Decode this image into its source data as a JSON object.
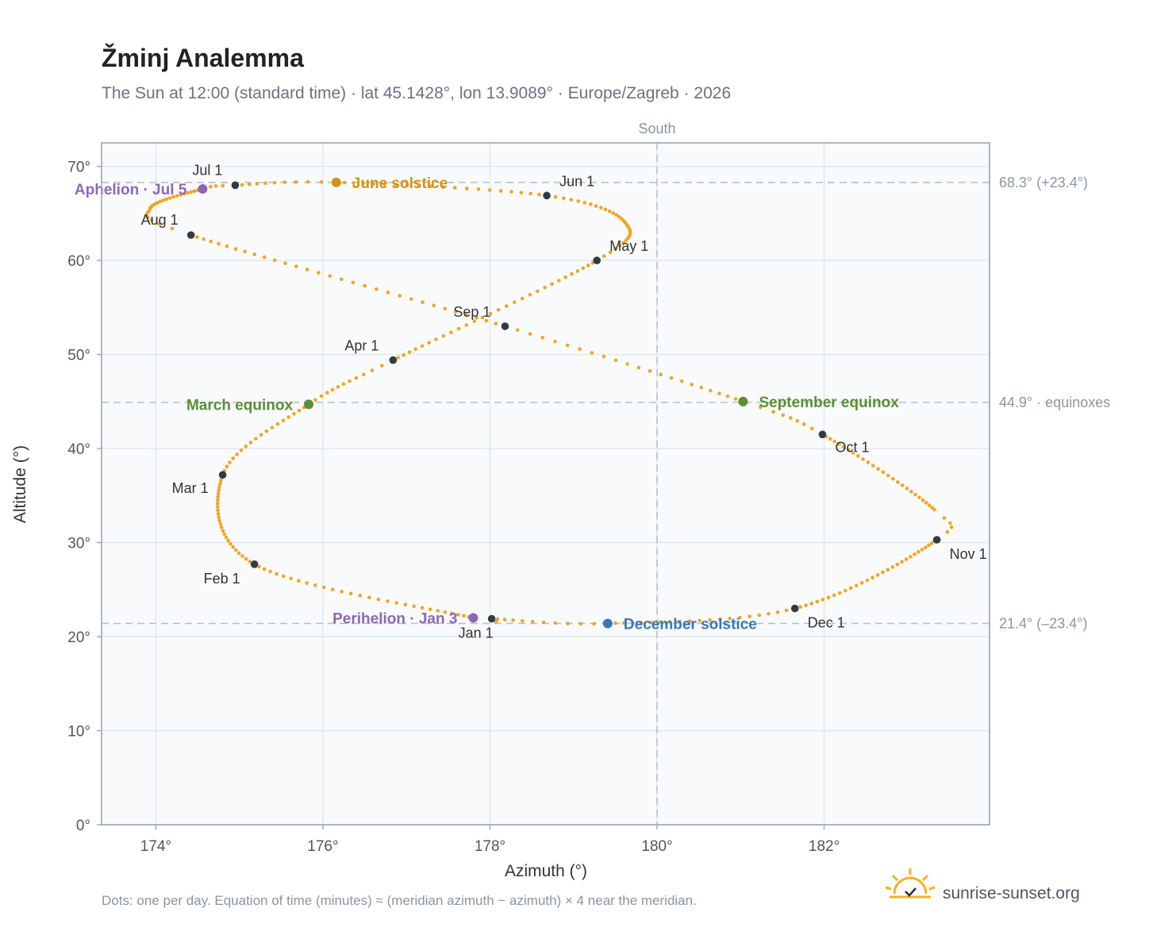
{
  "title": "Žminj Analemma",
  "subtitle": "The Sun at 12:00 (standard time) · lat 45.1428°, lon 13.9089° · Europe/Zagreb · 2026",
  "footnote": "Dots: one per day. Equation of time (minutes) ≈ (meridian azimuth − azimuth) × 4 near the meridian.",
  "brand": "sunrise-sunset.org",
  "chart_data": {
    "type": "scatter",
    "xlabel": "Azimuth (°)",
    "ylabel": "Altitude (°)",
    "xlim": [
      173.35,
      183.98
    ],
    "ylim": [
      0,
      72.5
    ],
    "x_ticks": [
      174,
      176,
      178,
      180,
      182
    ],
    "y_ticks": [
      0,
      10,
      20,
      30,
      40,
      50,
      60,
      70
    ],
    "x_tick_labels": [
      "174°",
      "176°",
      "178°",
      "180°",
      "182°"
    ],
    "y_tick_labels": [
      "0°",
      "10°",
      "20°",
      "30°",
      "40°",
      "50°",
      "60°",
      "70°"
    ],
    "south": {
      "x": 180,
      "label": "South"
    },
    "ref_lines": [
      {
        "y": 68.3,
        "label": "68.3° (+23.4°)"
      },
      {
        "y": 44.9,
        "label": "44.9° · equinoxes"
      },
      {
        "y": 21.4,
        "label": "21.4° (–23.4°)"
      }
    ],
    "months": [
      {
        "label": "Jan 1",
        "az": 178.02,
        "alt": 21.9
      },
      {
        "label": "Feb 1",
        "az": 175.18,
        "alt": 27.7
      },
      {
        "label": "Mar 1",
        "az": 174.8,
        "alt": 37.2
      },
      {
        "label": "Apr 1",
        "az": 176.84,
        "alt": 49.4
      },
      {
        "label": "May 1",
        "az": 179.28,
        "alt": 60.0
      },
      {
        "label": "Jun 1",
        "az": 178.68,
        "alt": 66.9
      },
      {
        "label": "Jul 1",
        "az": 174.95,
        "alt": 68.0
      },
      {
        "label": "Aug 1",
        "az": 174.42,
        "alt": 62.7
      },
      {
        "label": "Sep 1",
        "az": 178.18,
        "alt": 53.0
      },
      {
        "label": "Oct 1",
        "az": 181.98,
        "alt": 41.5
      },
      {
        "label": "Nov 1",
        "az": 183.35,
        "alt": 30.3
      },
      {
        "label": "Dec 1",
        "az": 181.65,
        "alt": 23.0
      }
    ],
    "events": [
      {
        "label": "March equinox",
        "az": 175.83,
        "alt": 44.7,
        "color": "#5a8f32"
      },
      {
        "label": "June solstice",
        "az": 176.16,
        "alt": 68.3,
        "color": "#d4920f"
      },
      {
        "label": "Aphelion · Jul 5",
        "az": 174.56,
        "alt": 67.6,
        "color": "#8e67b5"
      },
      {
        "label": "September equinox",
        "az": 181.03,
        "alt": 45.0,
        "color": "#5a8f32"
      },
      {
        "label": "December solstice",
        "az": 179.41,
        "alt": 21.4,
        "color": "#3a78b8"
      },
      {
        "label": "Perihelion · Jan 3",
        "az": 177.8,
        "alt": 22.0,
        "color": "#8e67b5"
      }
    ],
    "curve_color": "#f2a522",
    "month_marker_color": "#333a44"
  }
}
